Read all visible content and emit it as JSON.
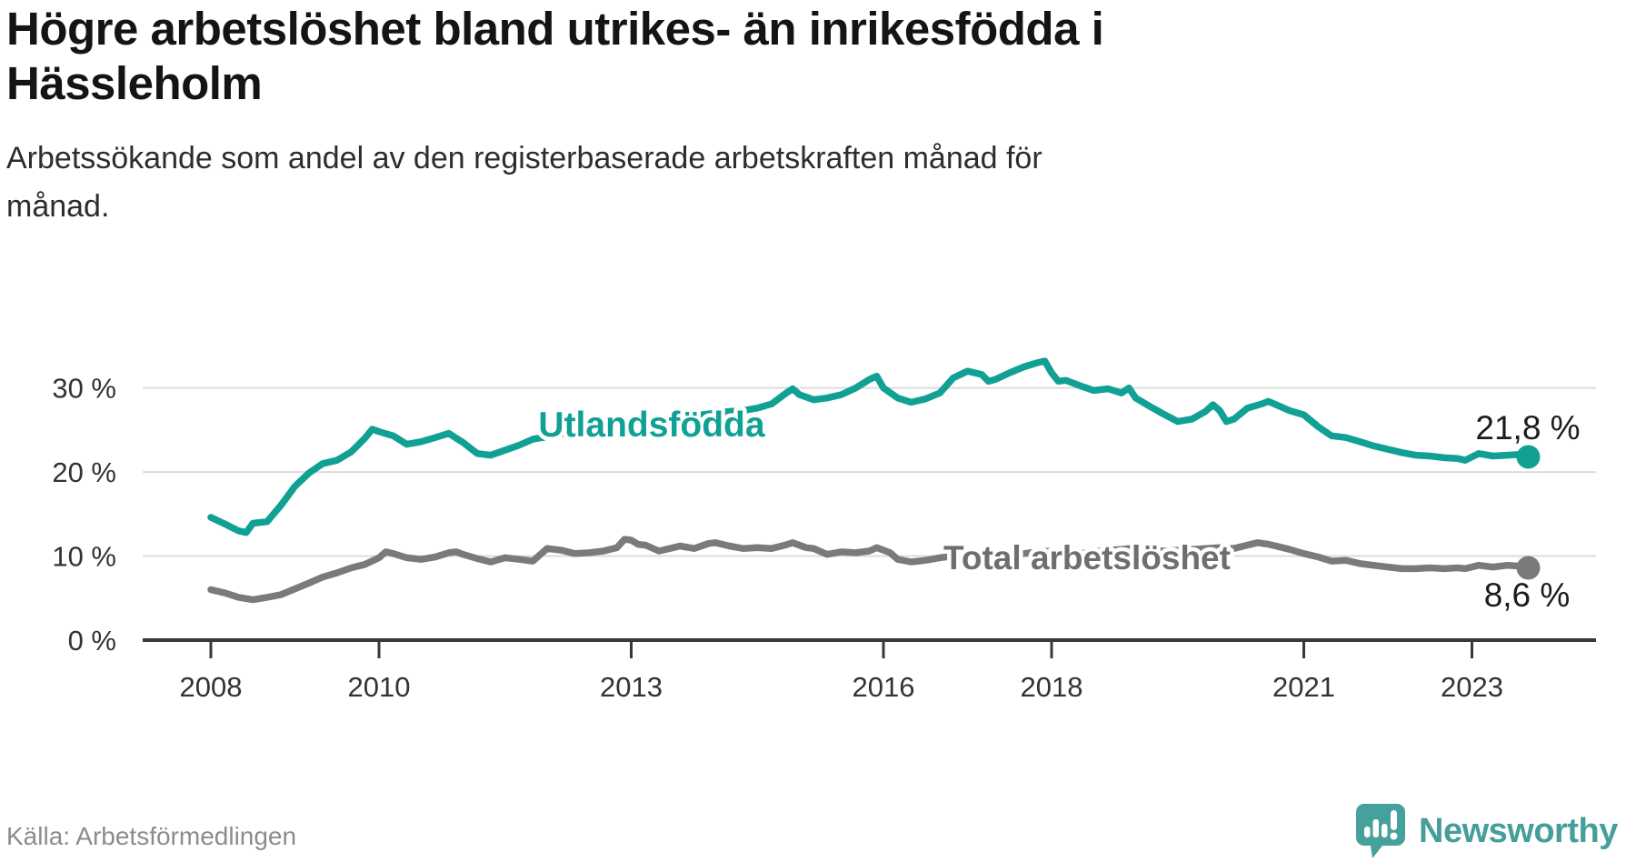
{
  "header": {
    "title_lines": [
      "Högre arbetslöshet bland utrikes- än inrikesfödda i",
      "Hässleholm"
    ],
    "subtitle_lines": [
      "Arbetssökande som andel av den registerbaserade arbetskraften månad för",
      "månad."
    ]
  },
  "footer": {
    "source": "Källa: Arbetsförmedlingen",
    "brand_name": "Newsworthy",
    "brand_color": "#459e9a"
  },
  "chart_data": {
    "type": "line",
    "title": "Högre arbetslöshet bland utrikes- än inrikesfödda i Hässleholm",
    "subtitle": "Arbetssökande som andel av den registerbaserade arbetskraften månad för månad.",
    "grid": "horizontal",
    "axis_color": "#383838",
    "grid_color": "#dcdcdc",
    "tick_text_color": "#333333",
    "annotation_text_color": "#1c1c1c",
    "x_axis": {
      "ticks": [
        2008,
        2010,
        2013,
        2016,
        2018,
        2021,
        2023
      ],
      "labels": [
        "2008",
        "2010",
        "2013",
        "2016",
        "2018",
        "2021",
        "2023"
      ],
      "range_years": [
        2007.19,
        2024.48
      ]
    },
    "y_axis": {
      "ticks": [
        0,
        10,
        20,
        30
      ],
      "labels": [
        "0 %",
        "10 %",
        "20 %",
        "30 %"
      ],
      "range": [
        0,
        35
      ],
      "unit": "%"
    },
    "series": [
      {
        "name": "Utlandsfödda",
        "color": "#11a094",
        "end_value": 21.8,
        "end_label": "21,8 %",
        "points": [
          [
            2008.0,
            14.6
          ],
          [
            2008.17,
            13.8
          ],
          [
            2008.33,
            13.0
          ],
          [
            2008.42,
            12.8
          ],
          [
            2008.5,
            13.9
          ],
          [
            2008.67,
            14.1
          ],
          [
            2008.83,
            16.0
          ],
          [
            2009.0,
            18.3
          ],
          [
            2009.17,
            19.9
          ],
          [
            2009.33,
            21.0
          ],
          [
            2009.5,
            21.4
          ],
          [
            2009.67,
            22.4
          ],
          [
            2009.83,
            24.0
          ],
          [
            2009.92,
            25.1
          ],
          [
            2010.0,
            24.8
          ],
          [
            2010.17,
            24.3
          ],
          [
            2010.33,
            23.3
          ],
          [
            2010.5,
            23.6
          ],
          [
            2010.67,
            24.1
          ],
          [
            2010.83,
            24.6
          ],
          [
            2011.0,
            23.5
          ],
          [
            2011.17,
            22.2
          ],
          [
            2011.33,
            22.0
          ],
          [
            2011.5,
            22.6
          ],
          [
            2011.67,
            23.2
          ],
          [
            2011.83,
            23.9
          ],
          [
            2012.0,
            24.2
          ],
          [
            2012.17,
            24.6
          ],
          [
            2012.33,
            24.4
          ],
          [
            2012.5,
            24.8
          ],
          [
            2012.67,
            25.1
          ],
          [
            2012.83,
            25.4
          ],
          [
            2013.0,
            25.7
          ],
          [
            2013.17,
            26.0
          ],
          [
            2013.33,
            25.8
          ],
          [
            2013.5,
            26.2
          ],
          [
            2013.67,
            26.5
          ],
          [
            2013.83,
            26.8
          ],
          [
            2014.0,
            27.0
          ],
          [
            2014.17,
            27.2
          ],
          [
            2014.33,
            27.3
          ],
          [
            2014.5,
            27.6
          ],
          [
            2014.67,
            28.1
          ],
          [
            2014.83,
            29.3
          ],
          [
            2014.92,
            29.9
          ],
          [
            2015.0,
            29.2
          ],
          [
            2015.17,
            28.6
          ],
          [
            2015.33,
            28.8
          ],
          [
            2015.5,
            29.2
          ],
          [
            2015.67,
            30.0
          ],
          [
            2015.83,
            31.0
          ],
          [
            2015.92,
            31.4
          ],
          [
            2016.0,
            30.0
          ],
          [
            2016.17,
            28.8
          ],
          [
            2016.33,
            28.3
          ],
          [
            2016.5,
            28.7
          ],
          [
            2016.67,
            29.4
          ],
          [
            2016.83,
            31.2
          ],
          [
            2017.0,
            32.0
          ],
          [
            2017.17,
            31.6
          ],
          [
            2017.25,
            30.8
          ],
          [
            2017.33,
            31.0
          ],
          [
            2017.5,
            31.8
          ],
          [
            2017.67,
            32.5
          ],
          [
            2017.83,
            33.0
          ],
          [
            2017.92,
            33.2
          ],
          [
            2018.0,
            31.8
          ],
          [
            2018.08,
            30.8
          ],
          [
            2018.17,
            30.9
          ],
          [
            2018.33,
            30.3
          ],
          [
            2018.5,
            29.7
          ],
          [
            2018.67,
            29.9
          ],
          [
            2018.83,
            29.4
          ],
          [
            2018.92,
            30.0
          ],
          [
            2019.0,
            28.8
          ],
          [
            2019.17,
            27.8
          ],
          [
            2019.33,
            26.9
          ],
          [
            2019.5,
            26.0
          ],
          [
            2019.67,
            26.3
          ],
          [
            2019.83,
            27.2
          ],
          [
            2019.92,
            28.0
          ],
          [
            2020.0,
            27.3
          ],
          [
            2020.08,
            26.0
          ],
          [
            2020.17,
            26.3
          ],
          [
            2020.33,
            27.6
          ],
          [
            2020.5,
            28.1
          ],
          [
            2020.58,
            28.4
          ],
          [
            2020.67,
            28.0
          ],
          [
            2020.83,
            27.3
          ],
          [
            2021.0,
            26.8
          ],
          [
            2021.17,
            25.4
          ],
          [
            2021.33,
            24.3
          ],
          [
            2021.5,
            24.1
          ],
          [
            2021.67,
            23.6
          ],
          [
            2021.83,
            23.1
          ],
          [
            2022.0,
            22.7
          ],
          [
            2022.17,
            22.3
          ],
          [
            2022.33,
            22.0
          ],
          [
            2022.5,
            21.9
          ],
          [
            2022.67,
            21.7
          ],
          [
            2022.83,
            21.6
          ],
          [
            2022.92,
            21.4
          ],
          [
            2023.08,
            22.2
          ],
          [
            2023.25,
            21.9
          ],
          [
            2023.42,
            22.0
          ],
          [
            2023.58,
            22.1
          ],
          [
            2023.67,
            21.8
          ]
        ]
      },
      {
        "name": "Total arbetslöshet",
        "color": "#7a7a7a",
        "end_value": 8.6,
        "end_label": "8,6 %",
        "points": [
          [
            2008.0,
            6.0
          ],
          [
            2008.17,
            5.6
          ],
          [
            2008.33,
            5.1
          ],
          [
            2008.5,
            4.8
          ],
          [
            2008.67,
            5.1
          ],
          [
            2008.83,
            5.4
          ],
          [
            2009.0,
            6.1
          ],
          [
            2009.17,
            6.8
          ],
          [
            2009.33,
            7.5
          ],
          [
            2009.5,
            8.0
          ],
          [
            2009.67,
            8.6
          ],
          [
            2009.83,
            9.0
          ],
          [
            2010.0,
            9.8
          ],
          [
            2010.08,
            10.5
          ],
          [
            2010.17,
            10.3
          ],
          [
            2010.33,
            9.8
          ],
          [
            2010.5,
            9.6
          ],
          [
            2010.67,
            9.9
          ],
          [
            2010.83,
            10.4
          ],
          [
            2010.92,
            10.5
          ],
          [
            2011.0,
            10.2
          ],
          [
            2011.17,
            9.7
          ],
          [
            2011.33,
            9.3
          ],
          [
            2011.5,
            9.8
          ],
          [
            2011.67,
            9.6
          ],
          [
            2011.83,
            9.4
          ],
          [
            2012.0,
            10.9
          ],
          [
            2012.17,
            10.7
          ],
          [
            2012.33,
            10.3
          ],
          [
            2012.5,
            10.4
          ],
          [
            2012.67,
            10.6
          ],
          [
            2012.83,
            11.0
          ],
          [
            2012.92,
            12.0
          ],
          [
            2013.0,
            11.9
          ],
          [
            2013.08,
            11.4
          ],
          [
            2013.17,
            11.3
          ],
          [
            2013.33,
            10.6
          ],
          [
            2013.5,
            11.0
          ],
          [
            2013.58,
            11.2
          ],
          [
            2013.75,
            10.9
          ],
          [
            2013.92,
            11.5
          ],
          [
            2014.0,
            11.6
          ],
          [
            2014.17,
            11.2
          ],
          [
            2014.33,
            10.9
          ],
          [
            2014.5,
            11.0
          ],
          [
            2014.67,
            10.9
          ],
          [
            2014.83,
            11.3
          ],
          [
            2014.92,
            11.6
          ],
          [
            2015.08,
            11.0
          ],
          [
            2015.17,
            10.9
          ],
          [
            2015.33,
            10.2
          ],
          [
            2015.5,
            10.5
          ],
          [
            2015.67,
            10.4
          ],
          [
            2015.83,
            10.6
          ],
          [
            2015.92,
            11.0
          ],
          [
            2016.08,
            10.4
          ],
          [
            2016.17,
            9.6
          ],
          [
            2016.33,
            9.3
          ],
          [
            2016.5,
            9.5
          ],
          [
            2016.67,
            9.8
          ],
          [
            2016.83,
            10.0
          ],
          [
            2017.0,
            10.2
          ],
          [
            2017.17,
            10.0
          ],
          [
            2017.33,
            9.9
          ],
          [
            2017.5,
            10.1
          ],
          [
            2017.67,
            10.3
          ],
          [
            2017.83,
            10.5
          ],
          [
            2018.0,
            10.6
          ],
          [
            2018.17,
            10.4
          ],
          [
            2018.33,
            10.3
          ],
          [
            2018.5,
            10.5
          ],
          [
            2018.67,
            10.7
          ],
          [
            2018.83,
            10.8
          ],
          [
            2019.0,
            11.0
          ],
          [
            2019.17,
            10.8
          ],
          [
            2019.33,
            10.6
          ],
          [
            2019.5,
            10.7
          ],
          [
            2019.67,
            10.8
          ],
          [
            2019.83,
            10.9
          ],
          [
            2020.0,
            11.0
          ],
          [
            2020.17,
            10.9
          ],
          [
            2020.33,
            11.3
          ],
          [
            2020.45,
            11.6
          ],
          [
            2020.58,
            11.4
          ],
          [
            2020.67,
            11.2
          ],
          [
            2020.83,
            10.8
          ],
          [
            2021.0,
            10.3
          ],
          [
            2021.17,
            9.9
          ],
          [
            2021.33,
            9.4
          ],
          [
            2021.5,
            9.5
          ],
          [
            2021.67,
            9.1
          ],
          [
            2021.83,
            8.9
          ],
          [
            2022.0,
            8.7
          ],
          [
            2022.17,
            8.5
          ],
          [
            2022.33,
            8.5
          ],
          [
            2022.5,
            8.6
          ],
          [
            2022.67,
            8.5
          ],
          [
            2022.83,
            8.6
          ],
          [
            2022.92,
            8.5
          ],
          [
            2023.08,
            8.9
          ],
          [
            2023.25,
            8.7
          ],
          [
            2023.42,
            8.9
          ],
          [
            2023.58,
            8.8
          ],
          [
            2023.67,
            8.6
          ]
        ]
      }
    ]
  }
}
